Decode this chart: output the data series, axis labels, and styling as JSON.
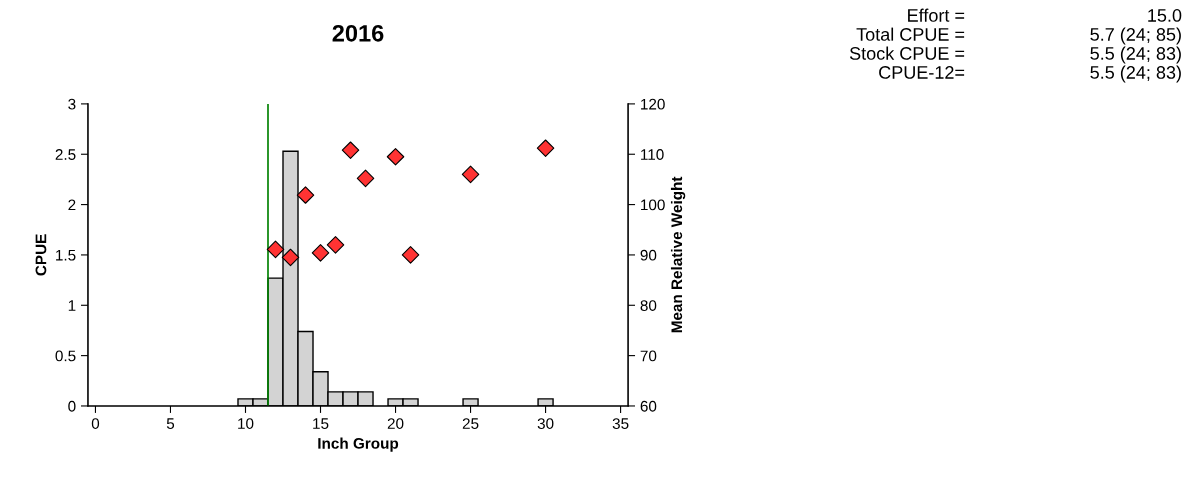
{
  "chart_data": {
    "type": "bar",
    "title": "2016",
    "xlabel": "Inch Group",
    "ylabel": "CPUE",
    "y2label": "Mean Relative Weight",
    "series": [
      {
        "color": "#d3d3d3",
        "x": [
          10,
          11,
          12,
          13,
          14,
          15,
          16,
          17,
          18,
          20,
          21,
          25,
          30
        ],
        "values": [
          0.07,
          0.07,
          1.27,
          2.53,
          0.74,
          0.34,
          0.14,
          0.14,
          0.14,
          0.07,
          0.07,
          0.07,
          0.07
        ]
      },
      {
        "type": "scatter",
        "axis": "y2",
        "color": "#ff3333",
        "marker": "diamond",
        "x": [
          12,
          13,
          14,
          15,
          16,
          17,
          18,
          20,
          21,
          25,
          30
        ],
        "values": [
          91.1,
          89.5,
          101.9,
          90.4,
          92.0,
          110.8,
          105.2,
          109.5,
          90.0,
          106.0,
          111.2
        ]
      }
    ],
    "xlim": [
      -0.5,
      35.5
    ],
    "xticks": [
      0,
      5,
      10,
      15,
      20,
      25,
      30,
      35
    ],
    "ylim": [
      0,
      3
    ],
    "yticks": [
      0,
      0.5,
      1,
      1.5,
      2,
      2.5,
      3
    ],
    "y2lim": [
      60,
      120
    ],
    "y2ticks": [
      60,
      70,
      80,
      90,
      100,
      110,
      120
    ],
    "ref_lines": [
      {
        "axis": "x",
        "value": 11.5,
        "color": "#008000"
      }
    ],
    "grid": false,
    "legend": false,
    "annotations": [
      "Effort =",
      "15.0",
      "Total CPUE =",
      "5.7 (24; 85)",
      "Stock CPUE =",
      "5.5 (24; 83)",
      "CPUE-12=",
      "5.5 (24; 83)"
    ]
  }
}
